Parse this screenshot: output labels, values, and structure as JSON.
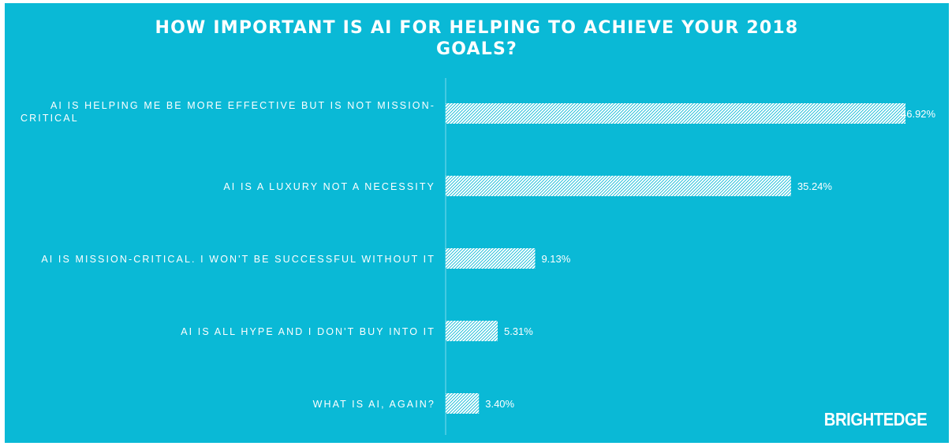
{
  "colors": {
    "background": "#0ab9d6",
    "bar_fill": "#ffffff",
    "bar_hatch": "#0ab9d6",
    "text": "#ffffff"
  },
  "brand": "BRIGHTEDGE",
  "chart_data": {
    "type": "bar",
    "orientation": "horizontal",
    "title": "HOW IMPORTANT IS AI FOR HELPING TO ACHIEVE YOUR 2018 GOALS?",
    "title_lines": [
      "HOW IMPORTANT IS AI FOR HELPING TO ACHIEVE YOUR 2018",
      "GOALS?"
    ],
    "categories": [
      [
        "AI IS HELPING ME BE MORE EFFECTIVE BUT IS NOT MISSION-",
        "CRITICAL"
      ],
      [
        "AI IS A LUXURY NOT A NECESSITY"
      ],
      [
        "AI IS MISSION-CRITICAL. I WON'T BE SUCCESSFUL WITHOUT IT"
      ],
      [
        "AI IS ALL HYPE AND I DON'T BUY INTO IT"
      ],
      [
        "WHAT IS AI, AGAIN?"
      ]
    ],
    "values": [
      46.92,
      35.24,
      9.13,
      5.31,
      3.4
    ],
    "value_labels": [
      "46.92%",
      "35.24%",
      "9.13%",
      "5.31%",
      "3.40%"
    ],
    "xlim": [
      0,
      47
    ],
    "grid": false,
    "legend": "none",
    "bar_pattern": "hatched"
  }
}
